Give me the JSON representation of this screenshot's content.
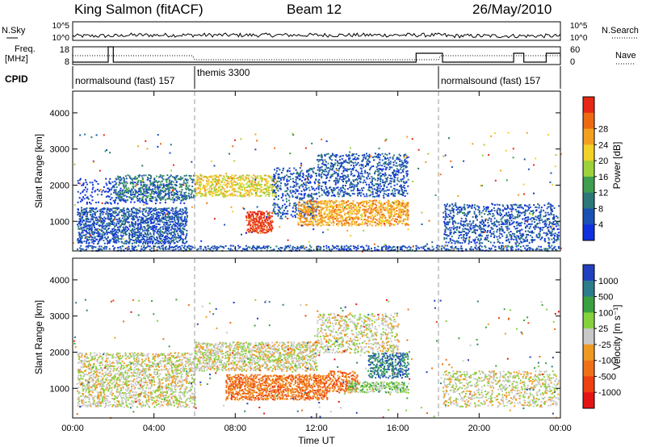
{
  "header": {
    "station": "King Salmon (fitACF)",
    "beam": "Beam 12",
    "date": "26/May/2010"
  },
  "left_labels": {
    "nsky": "N.Sky",
    "freq": "Freq.",
    "freq_unit": "[MHz]",
    "cpid": "CPID"
  },
  "right_labels": {
    "nsearch": "N.Search",
    "nave": "Nave"
  },
  "nsky_ticks": [
    "10^5",
    "10^0"
  ],
  "nsearch_ticks": [
    "10^5",
    "10^0"
  ],
  "freq_ticks": [
    "18",
    "8"
  ],
  "nave_ticks": [
    "60",
    "0"
  ],
  "cpid_segments": [
    {
      "label": "normalsound (fast) 157",
      "start": 0,
      "end": 6
    },
    {
      "label": "themis 3300",
      "start": 6,
      "end": 18
    },
    {
      "label": "normalsound (fast) 157",
      "start": 18,
      "end": 24
    }
  ],
  "mode_change_hours": [
    6,
    18
  ],
  "chart_data": [
    {
      "type": "heatmap",
      "name": "power",
      "xlabel": "Time UT",
      "ylabel": "Slant Range [km]",
      "xlim": [
        0,
        24
      ],
      "ylim": [
        180,
        4600
      ],
      "x_ticks": [
        "00:00",
        "04:00",
        "08:00",
        "12:00",
        "16:00",
        "20:00",
        "00:00"
      ],
      "y_ticks": [
        1000,
        2000,
        3000,
        4000
      ],
      "colorbar": {
        "label": "Power [dB]",
        "ticks": [
          4,
          8,
          12,
          16,
          20,
          24,
          28
        ],
        "colors": [
          "#1030e0",
          "#1a50b4",
          "#2c7878",
          "#3f9e50",
          "#9ed23c",
          "#f0d228",
          "#f3a020",
          "#ee6a12",
          "#e62814"
        ]
      },
      "regions": [
        {
          "t0": 0.2,
          "t1": 5.6,
          "r0": 400,
          "r1": 1400,
          "level": 1,
          "density": 0.7
        },
        {
          "t0": 0.2,
          "t1": 5.6,
          "r0": 1500,
          "r1": 2200,
          "level": 0,
          "density": 0.2
        },
        {
          "t0": 2.0,
          "t1": 6.0,
          "r0": 1600,
          "r1": 2300,
          "level": 2,
          "density": 0.45
        },
        {
          "t0": 6.0,
          "t1": 10.0,
          "r0": 1700,
          "r1": 2300,
          "level": 5,
          "density": 0.6
        },
        {
          "t0": 8.5,
          "t1": 9.8,
          "r0": 700,
          "r1": 1300,
          "level": 8,
          "density": 0.8
        },
        {
          "t0": 9.8,
          "t1": 12.0,
          "r0": 1100,
          "r1": 2500,
          "level": 1,
          "density": 0.35
        },
        {
          "t0": 11.0,
          "t1": 16.5,
          "r0": 900,
          "r1": 1600,
          "level": 6,
          "density": 0.6
        },
        {
          "t0": 12.0,
          "t1": 16.5,
          "r0": 1700,
          "r1": 2900,
          "level": 1,
          "density": 0.4
        },
        {
          "t0": 18.2,
          "t1": 23.9,
          "r0": 400,
          "r1": 1500,
          "level": 1,
          "density": 0.4
        },
        {
          "t0": 0.2,
          "t1": 23.9,
          "r0": 200,
          "r1": 350,
          "level": 1,
          "density": 0.5
        }
      ]
    },
    {
      "type": "heatmap",
      "name": "velocity",
      "xlabel": "Time UT",
      "ylabel": "Slant Range [km]",
      "xlim": [
        0,
        24
      ],
      "ylim": [
        180,
        4600
      ],
      "x_ticks": [
        "00:00",
        "04:00",
        "08:00",
        "12:00",
        "16:00",
        "20:00",
        "00:00"
      ],
      "y_ticks": [
        1000,
        2000,
        3000,
        4000
      ],
      "colorbar": {
        "label": "Velocity [m s⁻¹]",
        "ticks": [
          1000,
          500,
          100,
          25,
          -25,
          -100,
          -500,
          -1000
        ],
        "colors": [
          "#2040c0",
          "#2c7c8c",
          "#3aa040",
          "#86d23c",
          "#c8c8c8",
          "#ee9a22",
          "#f07018",
          "#ee4010",
          "#e41414"
        ]
      },
      "regions": [
        {
          "t0": 0.2,
          "t1": 6.0,
          "r0": 500,
          "r1": 2000,
          "level": 4,
          "density": 0.5
        },
        {
          "t0": 6.0,
          "t1": 12.0,
          "r0": 1500,
          "r1": 2300,
          "level": 4,
          "density": 0.6
        },
        {
          "t0": 7.5,
          "t1": 12.5,
          "r0": 700,
          "r1": 1400,
          "level": 6,
          "density": 0.7
        },
        {
          "t0": 12.5,
          "t1": 14.0,
          "r0": 900,
          "r1": 1500,
          "level": 6,
          "density": 0.6
        },
        {
          "t0": 13.5,
          "t1": 16.5,
          "r0": 900,
          "r1": 1200,
          "level": 3,
          "density": 0.6
        },
        {
          "t0": 14.5,
          "t1": 16.5,
          "r0": 1300,
          "r1": 2000,
          "level": 1,
          "density": 0.55
        },
        {
          "t0": 12.0,
          "t1": 16.0,
          "r0": 2000,
          "r1": 3100,
          "level": 4,
          "density": 0.35
        },
        {
          "t0": 18.2,
          "t1": 23.9,
          "r0": 500,
          "r1": 1500,
          "level": 4,
          "density": 0.35
        }
      ]
    }
  ]
}
